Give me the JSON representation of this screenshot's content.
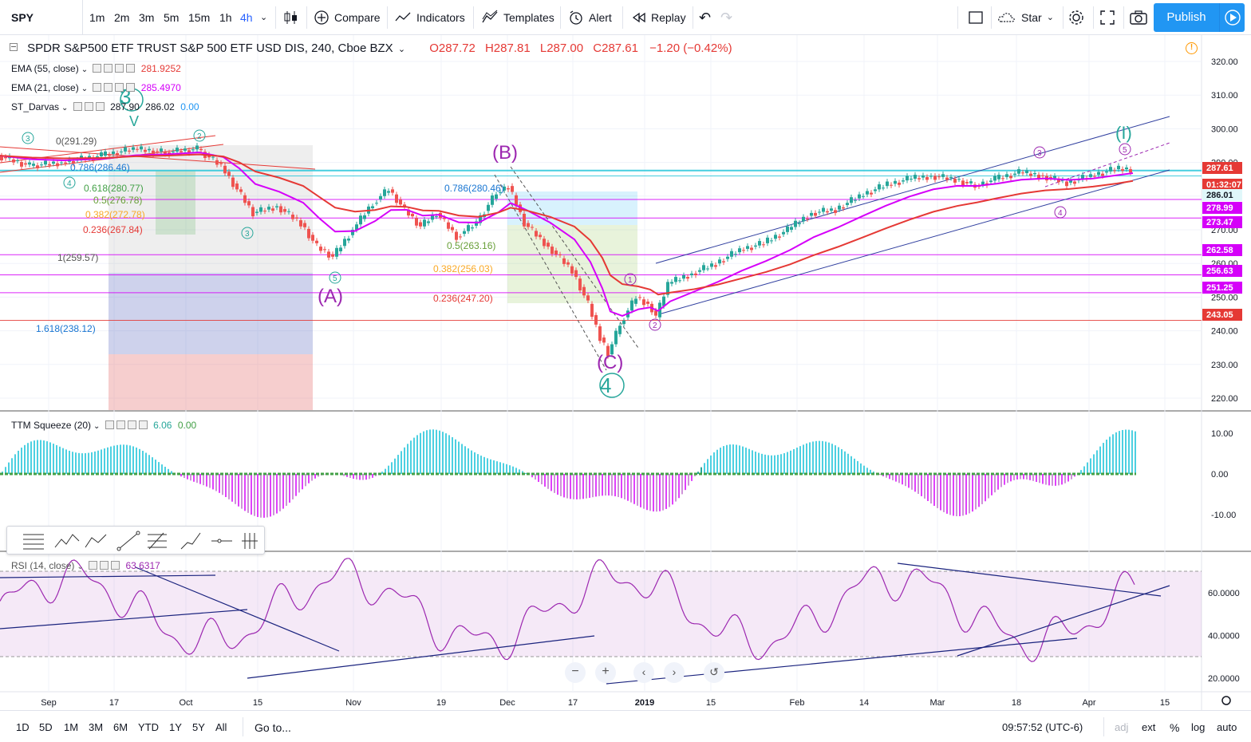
{
  "symbol": "SPY",
  "timeframes": [
    "1m",
    "2m",
    "3m",
    "5m",
    "15m",
    "1h",
    "4h"
  ],
  "active_timeframe": "4h",
  "toolbar": {
    "compare": "Compare",
    "indicators": "Indicators",
    "templates": "Templates",
    "alert": "Alert",
    "replay": "Replay",
    "star": "Star",
    "publish": "Publish"
  },
  "header": {
    "title": "SPDR S&P500 ETF TRUST S&P 500 ETF USD DIS, 240, Cboe BZX",
    "open": "O287.72",
    "high": "H287.81",
    "low": "L287.00",
    "close": "C287.61",
    "change": "−1.20 (−0.42%)"
  },
  "studies": [
    {
      "name": "EMA (55, close)",
      "value": "281.9252",
      "color": "#e53935"
    },
    {
      "name": "EMA (21, close)",
      "value": "285.4970",
      "color": "#d500f9"
    },
    {
      "name": "ST_Darvas",
      "value": "287.90",
      "value2": "286.02",
      "value3": "0.00"
    }
  ],
  "ttm": {
    "name": "TTM Squeeze (20)",
    "value": "6.06",
    "value2": "0.00"
  },
  "rsi": {
    "name": "RSI (14, close)",
    "value": "63.6317"
  },
  "price_axis": [
    "320.00",
    "310.00",
    "300.00",
    "290.00",
    "280.00",
    "270.00",
    "260.00",
    "250.00",
    "240.00",
    "230.00",
    "220.00"
  ],
  "price_tags": [
    {
      "label": "287.61",
      "bg": "#e53935"
    },
    {
      "label": "01:32:07",
      "bg": "#e53935"
    },
    {
      "label": "286.01",
      "bg": "#e0f7fa",
      "fg": "#131722"
    },
    {
      "label": "278.99",
      "bg": "#d500f9"
    },
    {
      "label": "273.47",
      "bg": "#d500f9"
    },
    {
      "label": "262.58",
      "bg": "#d500f9"
    },
    {
      "label": "256.63",
      "bg": "#d500f9"
    },
    {
      "label": "251.25",
      "bg": "#d500f9"
    },
    {
      "label": "243.05",
      "bg": "#e53935"
    }
  ],
  "ttm_axis": [
    "10.00",
    "0.00",
    "-10.00"
  ],
  "rsi_axis": [
    "60.0000",
    "40.0000",
    "20.0000"
  ],
  "time_axis": [
    "Sep",
    "17",
    "Oct",
    "15",
    "Nov",
    "19",
    "Dec",
    "17",
    "2019",
    "15",
    "Feb",
    "14",
    "Mar",
    "18",
    "Apr",
    "15"
  ],
  "fib_labels": [
    "0(291.29)",
    "0.786(286.46)",
    "0.618(280.77)",
    "0.5(276.78)",
    "0.382(272.78)",
    "0.236(267.84)",
    "1(259.57)",
    "1.618(238.12)",
    "0.786(280.46)",
    "0.5(263.16)",
    "0.382(256.03)",
    "0.236(247.20)"
  ],
  "wave_labels": [
    "3",
    "4",
    "(A)",
    "(B)",
    "(C)",
    "4",
    "(I)",
    "1",
    "2",
    "3",
    "4",
    "5"
  ],
  "ranges": [
    "1D",
    "5D",
    "1M",
    "3M",
    "6M",
    "YTD",
    "1Y",
    "5Y",
    "All"
  ],
  "goto": "Go to...",
  "clock": "09:57:52 (UTC-6)",
  "bottom_right": [
    "adj",
    "ext",
    "%",
    "log",
    "auto"
  ],
  "colors": {
    "accent": "#2196f3",
    "ema55": "#e53935",
    "ema21": "#d500f9",
    "wave": "#26a69a",
    "corrective": "#9c27b0"
  }
}
